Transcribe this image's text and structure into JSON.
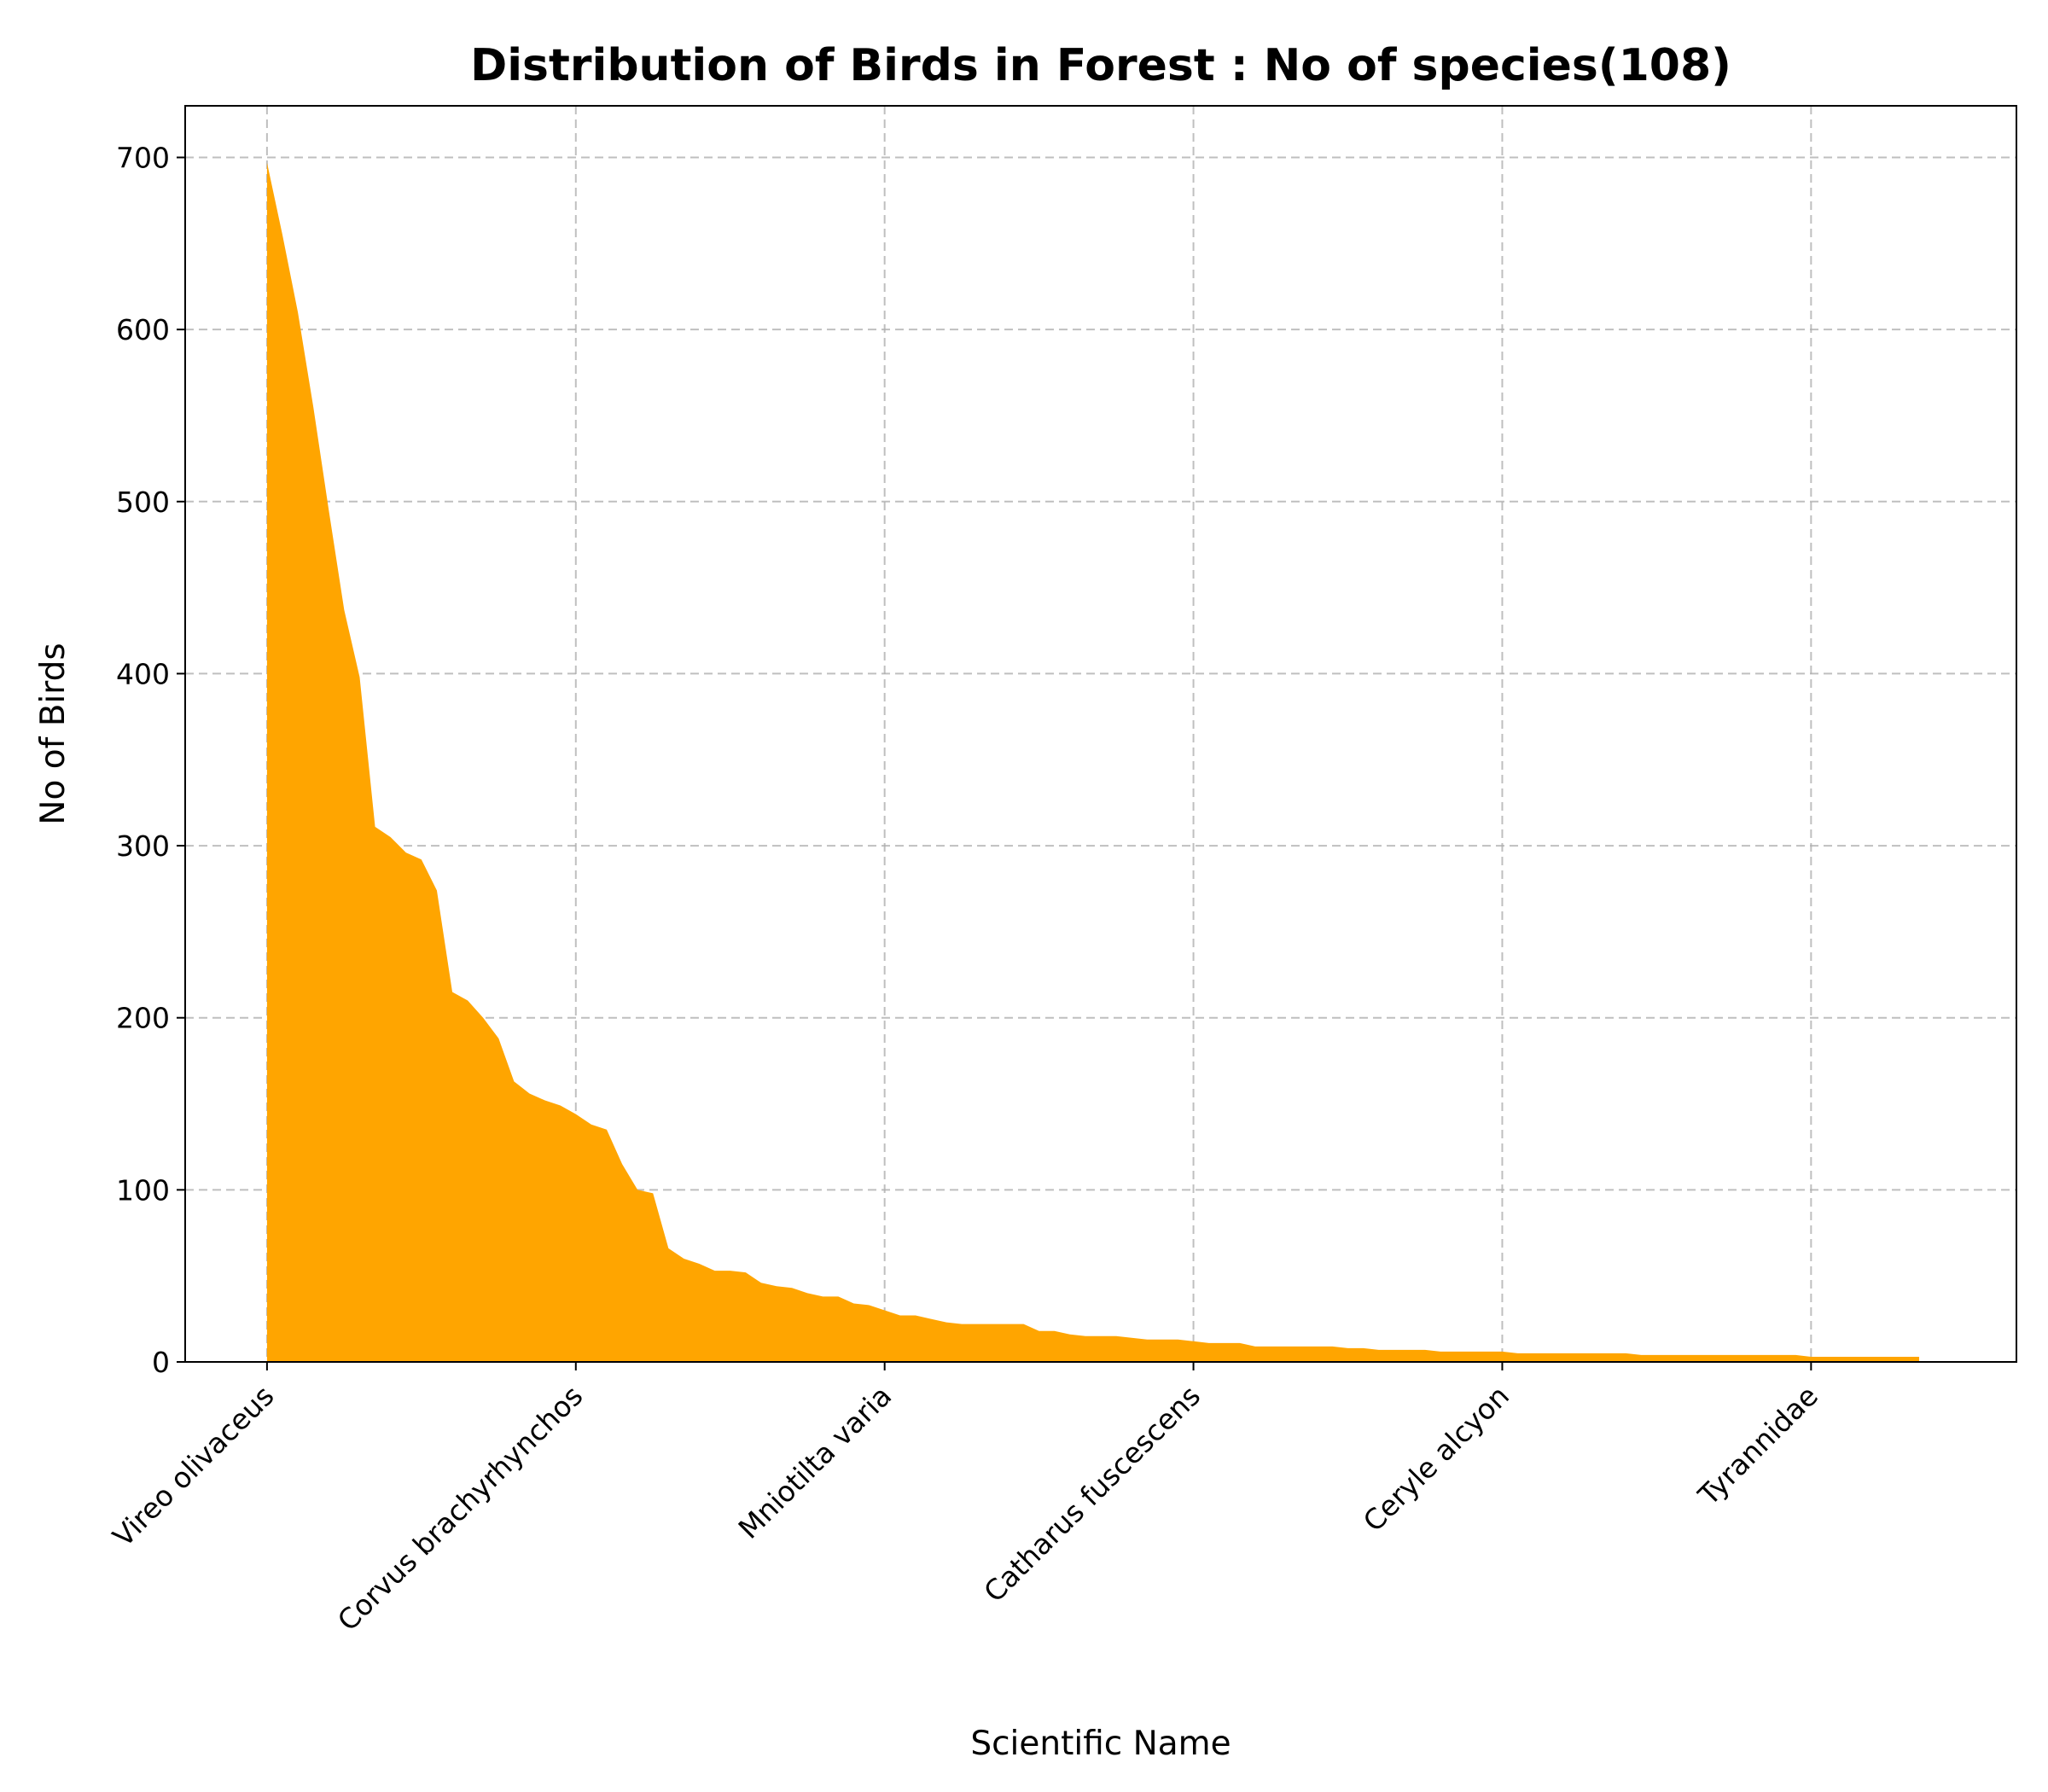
{
  "chart_data": {
    "type": "area",
    "title": "Distribution of Birds in Forest : No of species(108)",
    "xlabel": "Scientific Name",
    "ylabel": "No of Birds",
    "ylim": [
      0,
      730
    ],
    "xlim": [
      -5.3,
      113.3
    ],
    "yticks": [
      0,
      100,
      200,
      300,
      400,
      500,
      600,
      700
    ],
    "xticks": [
      {
        "index": 0,
        "label": "Vireo olivaceus"
      },
      {
        "index": 20,
        "label": "Corvus brachyrhynchos"
      },
      {
        "index": 40,
        "label": "Mniotilta varia"
      },
      {
        "index": 60,
        "label": "Catharus fuscescens"
      },
      {
        "index": 80,
        "label": "Ceryle alcyon"
      },
      {
        "index": 100,
        "label": "Tyrannidae"
      }
    ],
    "grid": true,
    "color": "#ffa500",
    "values": [
      697,
      655,
      610,
      555,
      495,
      437,
      398,
      311,
      305,
      296,
      292,
      274,
      215,
      210,
      200,
      188,
      163,
      156,
      152,
      149,
      144,
      138,
      135,
      115,
      100,
      98,
      66,
      60,
      57,
      53,
      53,
      52,
      46,
      44,
      43,
      40,
      38,
      38,
      34,
      33,
      30,
      27,
      27,
      25,
      23,
      22,
      22,
      22,
      22,
      22,
      18,
      18,
      16,
      15,
      15,
      15,
      14,
      13,
      13,
      13,
      12,
      11,
      11,
      11,
      9,
      9,
      9,
      9,
      9,
      9,
      8,
      8,
      7,
      7,
      7,
      7,
      6,
      6,
      6,
      6,
      6,
      5,
      5,
      5,
      5,
      5,
      5,
      5,
      5,
      4,
      4,
      4,
      4,
      4,
      4,
      4,
      4,
      4,
      4,
      4,
      3,
      3,
      3,
      3,
      3,
      3,
      3,
      3
    ]
  }
}
